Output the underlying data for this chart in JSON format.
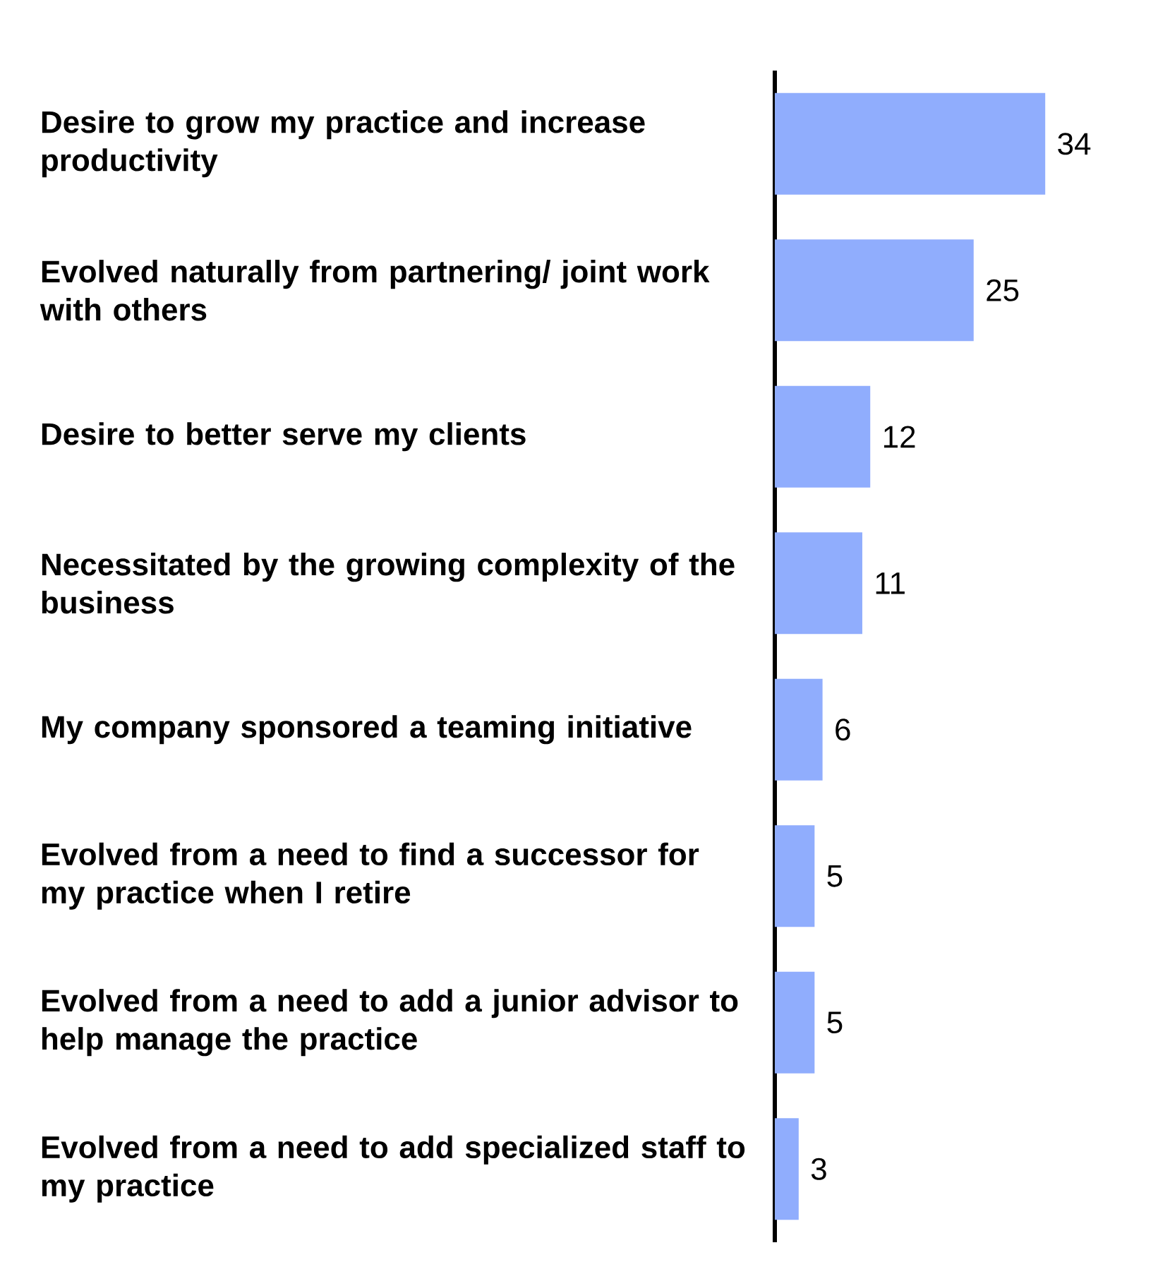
{
  "chart_data": {
    "type": "bar",
    "orientation": "horizontal",
    "categories": [
      "Desire to grow my practice and increase productivity",
      "Evolved naturally from partnering/ joint work with others",
      "Desire to better serve my clients",
      "Necessitated by the growing complexity of the business",
      "My company sponsored a teaming initiative",
      "Evolved from a need to find a successor for my practice when I retire",
      "Evolved from a need to add a junior advisor to help manage the practice",
      "Evolved from a need to add specialized staff to my practice"
    ],
    "values": [
      34,
      25,
      12,
      11,
      6,
      5,
      5,
      3
    ],
    "color": "#90adfd",
    "data_labels": true
  }
}
